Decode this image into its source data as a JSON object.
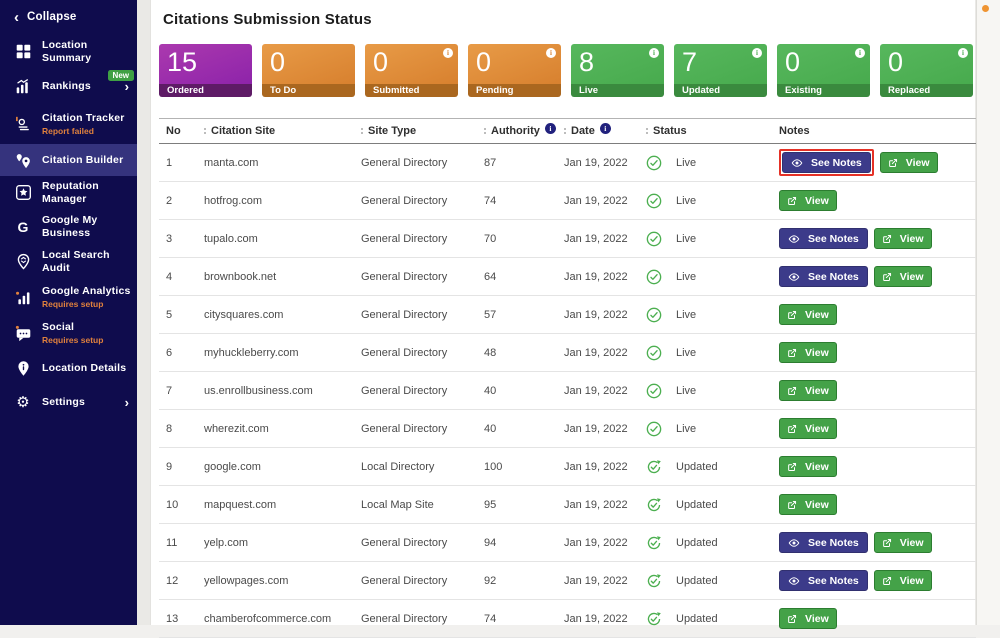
{
  "page": {
    "title": "Citations Submission Status"
  },
  "sidebar": {
    "collapse_label": "Collapse",
    "items": [
      {
        "label": "Location Summary",
        "icon": "grid-icon",
        "id": "location-summary"
      },
      {
        "label": "Rankings",
        "icon": "bar-chart-arrow-icon",
        "id": "rankings",
        "badge": "New",
        "chevron": true
      },
      {
        "label": "Citation Tracker",
        "icon": "citation-tracker-icon",
        "id": "citation-tracker",
        "subtext": "Report failed"
      },
      {
        "label": "Citation Builder",
        "icon": "map-pins-icon",
        "id": "citation-builder",
        "active": true
      },
      {
        "label": "Reputation Manager",
        "icon": "star-square-icon",
        "id": "reputation-manager"
      },
      {
        "label": "Google My Business",
        "icon": "google-g-icon",
        "id": "google-my-business"
      },
      {
        "label": "Local Search Audit",
        "icon": "pin-audit-icon",
        "id": "local-search-audit"
      },
      {
        "label": "Google Analytics",
        "icon": "analytics-bars-icon",
        "id": "google-analytics",
        "subtext": "Requires setup"
      },
      {
        "label": "Social",
        "icon": "chat-bubble-icon",
        "id": "social",
        "subtext": "Requires setup"
      },
      {
        "label": "Location Details",
        "icon": "pin-info-icon",
        "id": "location-details"
      },
      {
        "label": "Settings",
        "icon": "gear-icon",
        "id": "settings",
        "chevron": true
      }
    ]
  },
  "cards": [
    {
      "value": "15",
      "label": "Ordered",
      "color": "purple",
      "info": false
    },
    {
      "value": "0",
      "label": "To Do",
      "color": "orange",
      "info": false
    },
    {
      "value": "0",
      "label": "Submitted",
      "color": "orange",
      "info": true
    },
    {
      "value": "0",
      "label": "Pending",
      "color": "orange",
      "info": true
    },
    {
      "value": "8",
      "label": "Live",
      "color": "green",
      "info": true
    },
    {
      "value": "7",
      "label": "Updated",
      "color": "green",
      "info": true
    },
    {
      "value": "0",
      "label": "Existing",
      "color": "green",
      "info": true
    },
    {
      "value": "0",
      "label": "Replaced",
      "color": "green",
      "info": true
    }
  ],
  "table": {
    "columns": [
      {
        "label": "No",
        "key": "no",
        "sort": false,
        "info": false
      },
      {
        "label": "Citation Site",
        "key": "site",
        "sort": true,
        "info": false
      },
      {
        "label": "Site Type",
        "key": "type",
        "sort": true,
        "info": false
      },
      {
        "label": "Authority",
        "key": "auth",
        "sort": true,
        "info": true
      },
      {
        "label": "Date",
        "key": "date",
        "sort": true,
        "info": true
      },
      {
        "label": "Status",
        "key": "status",
        "sort": true,
        "info": false
      },
      {
        "label": "Notes",
        "key": "notes",
        "sort": false,
        "info": false
      }
    ],
    "see_notes_label": "See Notes",
    "view_label": "View",
    "rows": [
      {
        "no": "1",
        "site": "manta.com",
        "type": "General Directory",
        "authority": "87",
        "date": "Jan 19, 2022",
        "status": "Live",
        "see_notes": true,
        "annotated": true
      },
      {
        "no": "2",
        "site": "hotfrog.com",
        "type": "General Directory",
        "authority": "74",
        "date": "Jan 19, 2022",
        "status": "Live",
        "see_notes": false,
        "annotated": false
      },
      {
        "no": "3",
        "site": "tupalo.com",
        "type": "General Directory",
        "authority": "70",
        "date": "Jan 19, 2022",
        "status": "Live",
        "see_notes": true,
        "annotated": false
      },
      {
        "no": "4",
        "site": "brownbook.net",
        "type": "General Directory",
        "authority": "64",
        "date": "Jan 19, 2022",
        "status": "Live",
        "see_notes": true,
        "annotated": false
      },
      {
        "no": "5",
        "site": "citysquares.com",
        "type": "General Directory",
        "authority": "57",
        "date": "Jan 19, 2022",
        "status": "Live",
        "see_notes": false,
        "annotated": false
      },
      {
        "no": "6",
        "site": "myhuckleberry.com",
        "type": "General Directory",
        "authority": "48",
        "date": "Jan 19, 2022",
        "status": "Live",
        "see_notes": false,
        "annotated": false
      },
      {
        "no": "7",
        "site": "us.enrollbusiness.com",
        "type": "General Directory",
        "authority": "40",
        "date": "Jan 19, 2022",
        "status": "Live",
        "see_notes": false,
        "annotated": false
      },
      {
        "no": "8",
        "site": "wherezit.com",
        "type": "General Directory",
        "authority": "40",
        "date": "Jan 19, 2022",
        "status": "Live",
        "see_notes": false,
        "annotated": false
      },
      {
        "no": "9",
        "site": "google.com",
        "type": "Local Directory",
        "authority": "100",
        "date": "Jan 19, 2022",
        "status": "Updated",
        "see_notes": false,
        "annotated": false
      },
      {
        "no": "10",
        "site": "mapquest.com",
        "type": "Local Map Site",
        "authority": "95",
        "date": "Jan 19, 2022",
        "status": "Updated",
        "see_notes": false,
        "annotated": false
      },
      {
        "no": "11",
        "site": "yelp.com",
        "type": "General Directory",
        "authority": "94",
        "date": "Jan 19, 2022",
        "status": "Updated",
        "see_notes": true,
        "annotated": false
      },
      {
        "no": "12",
        "site": "yellowpages.com",
        "type": "General Directory",
        "authority": "92",
        "date": "Jan 19, 2022",
        "status": "Updated",
        "see_notes": true,
        "annotated": false
      },
      {
        "no": "13",
        "site": "chamberofcommerce.com",
        "type": "General Directory",
        "authority": "74",
        "date": "Jan 19, 2022",
        "status": "Updated",
        "see_notes": false,
        "annotated": false
      }
    ]
  },
  "colors": {
    "sidebar_bg": "#0f0c4d",
    "sidebar_active_bg": "#35337d",
    "alert_orange": "#e0813d",
    "card_purple": "#9c27b0",
    "card_orange": "#d8812f",
    "card_green": "#48ab4e",
    "status_green": "#4caf50",
    "see_notes_navy": "#3c3b8a",
    "view_green": "#44a248",
    "annotation_red": "#e53126",
    "notification_orange": "#ef9431"
  }
}
